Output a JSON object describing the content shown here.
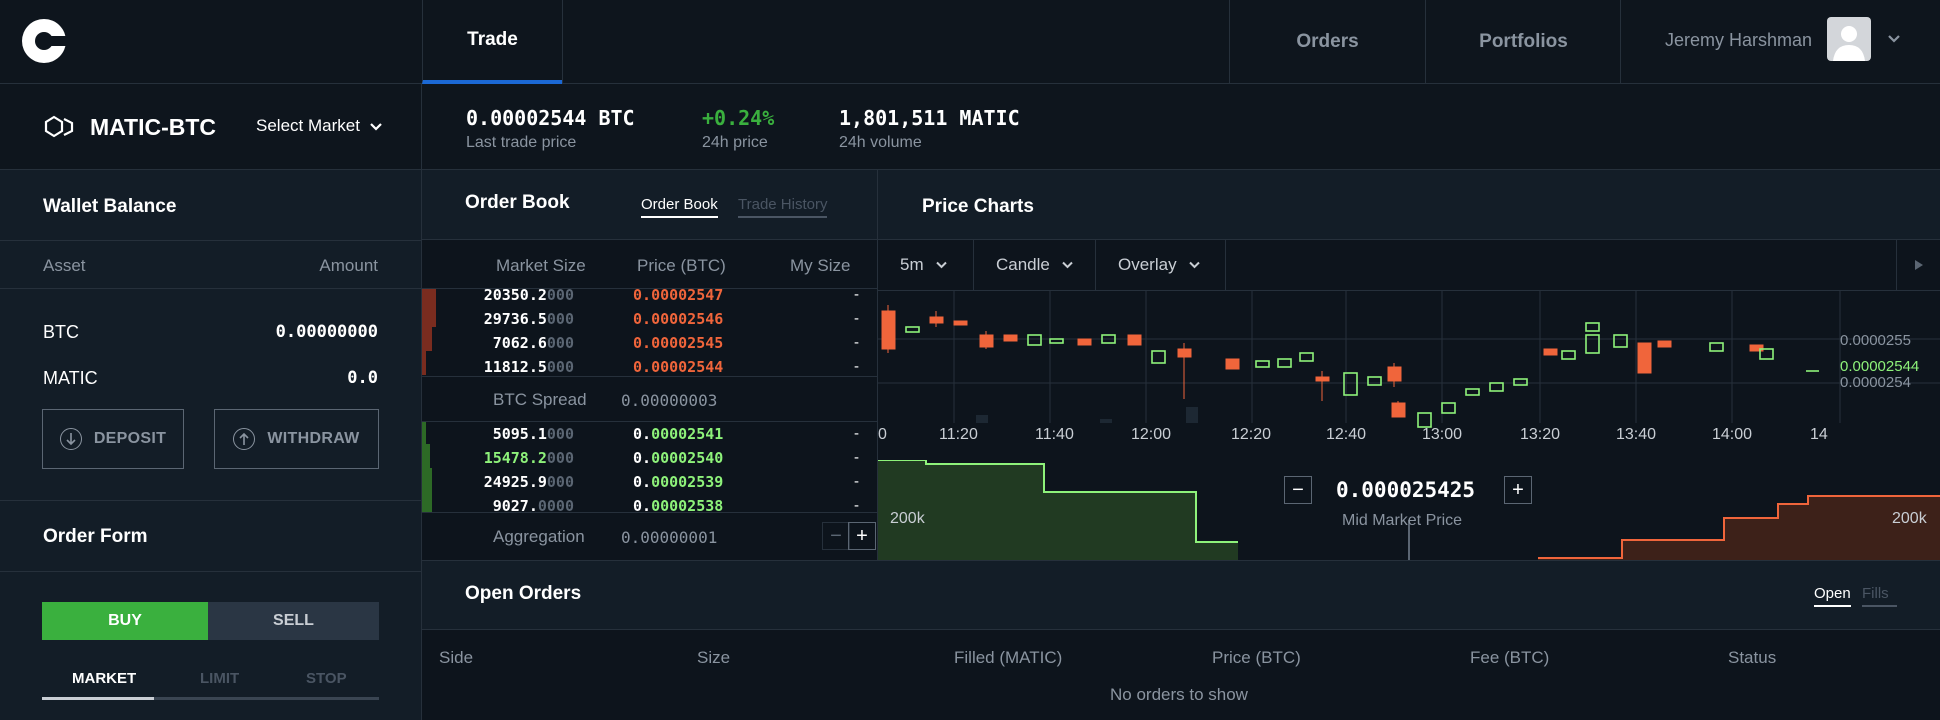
{
  "nav": {
    "tabs": [
      {
        "label": "Trade"
      },
      {
        "label": "Orders"
      },
      {
        "label": "Portfolios"
      }
    ],
    "user_name": "Jeremy Harshman"
  },
  "market": {
    "pair": "MATIC-BTC",
    "select_label": "Select Market",
    "last_price": "0.00002544 BTC",
    "last_price_label": "Last trade price",
    "change": "+0.24%",
    "change_label": "24h price",
    "volume": "1,801,511 MATIC",
    "volume_label": "24h volume"
  },
  "wallet": {
    "title": "Wallet Balance",
    "col_asset": "Asset",
    "col_amount": "Amount",
    "rows": [
      {
        "asset": "BTC",
        "amount": "0.00000000"
      },
      {
        "asset": "MATIC",
        "amount": "0.0"
      }
    ],
    "deposit": "DEPOSIT",
    "withdraw": "WITHDRAW"
  },
  "order_form": {
    "title": "Order Form",
    "buy": "BUY",
    "sell": "SELL",
    "types": [
      "MARKET",
      "LIMIT",
      "STOP"
    ]
  },
  "order_book": {
    "title": "Order Book",
    "tab_book": "Order Book",
    "tab_history": "Trade History",
    "col_size": "Market Size",
    "col_price": "Price (BTC)",
    "col_mine": "My Size",
    "asks": [
      {
        "size": "20350.2",
        "pad": "000",
        "price_pre": "0.",
        "price": "00002547",
        "mine": "-"
      },
      {
        "size": "29736.5",
        "pad": "000",
        "price_pre": "0.",
        "price": "00002546",
        "mine": "-"
      },
      {
        "size": "7062.6",
        "pad": "000",
        "price_pre": "0.",
        "price": "00002545",
        "mine": "-"
      },
      {
        "size": "11812.5",
        "pad": "000",
        "price_pre": "0.",
        "price": "00002544",
        "mine": "-"
      }
    ],
    "spread_label": "BTC Spread",
    "spread_value": "0.00000003",
    "bids": [
      {
        "size": "5095.1",
        "pad": "000",
        "price_pre": "0.",
        "price": "00002541",
        "mine": "-"
      },
      {
        "size": "15478.2",
        "pad": "000",
        "price_pre": "0.",
        "price": "00002540",
        "mine": "-"
      },
      {
        "size": "24925.9",
        "pad": "000",
        "price_pre": "0.",
        "price": "00002539",
        "mine": "-"
      },
      {
        "size": "9027.",
        "pad": "0000",
        "price_pre": "0.",
        "price": "00002538",
        "mine": "-"
      }
    ],
    "agg_label": "Aggregation",
    "agg_value": "0.00000001",
    "minus": "−",
    "plus": "+"
  },
  "price_charts": {
    "title": "Price Charts",
    "interval": "5m",
    "chart_type": "Candle",
    "overlay": "Overlay",
    "price_labels": [
      "0.0000255",
      "0.00002544",
      "0.0000254"
    ],
    "time_labels": [
      "0",
      "11:20",
      "11:40",
      "12:00",
      "12:20",
      "12:40",
      "13:00",
      "13:20",
      "13:40",
      "14:00",
      "14"
    ],
    "depth_left": "200k",
    "depth_right": "200k",
    "mid_price": "0.000025425",
    "mid_label": "Mid Market Price",
    "minus": "−",
    "plus": "+"
  },
  "open_orders": {
    "title": "Open Orders",
    "tab_open": "Open",
    "tab_fills": "Fills",
    "columns": [
      "Side",
      "Size",
      "Filled (MATIC)",
      "Price (BTC)",
      "Fee (BTC)",
      "Status"
    ],
    "empty": "No orders to show"
  },
  "colors": {
    "accent_blue": "#1b68d4",
    "buy_green": "#3ab03e",
    "ask_red": "#f0653b",
    "bid_green": "#8ef27a"
  }
}
